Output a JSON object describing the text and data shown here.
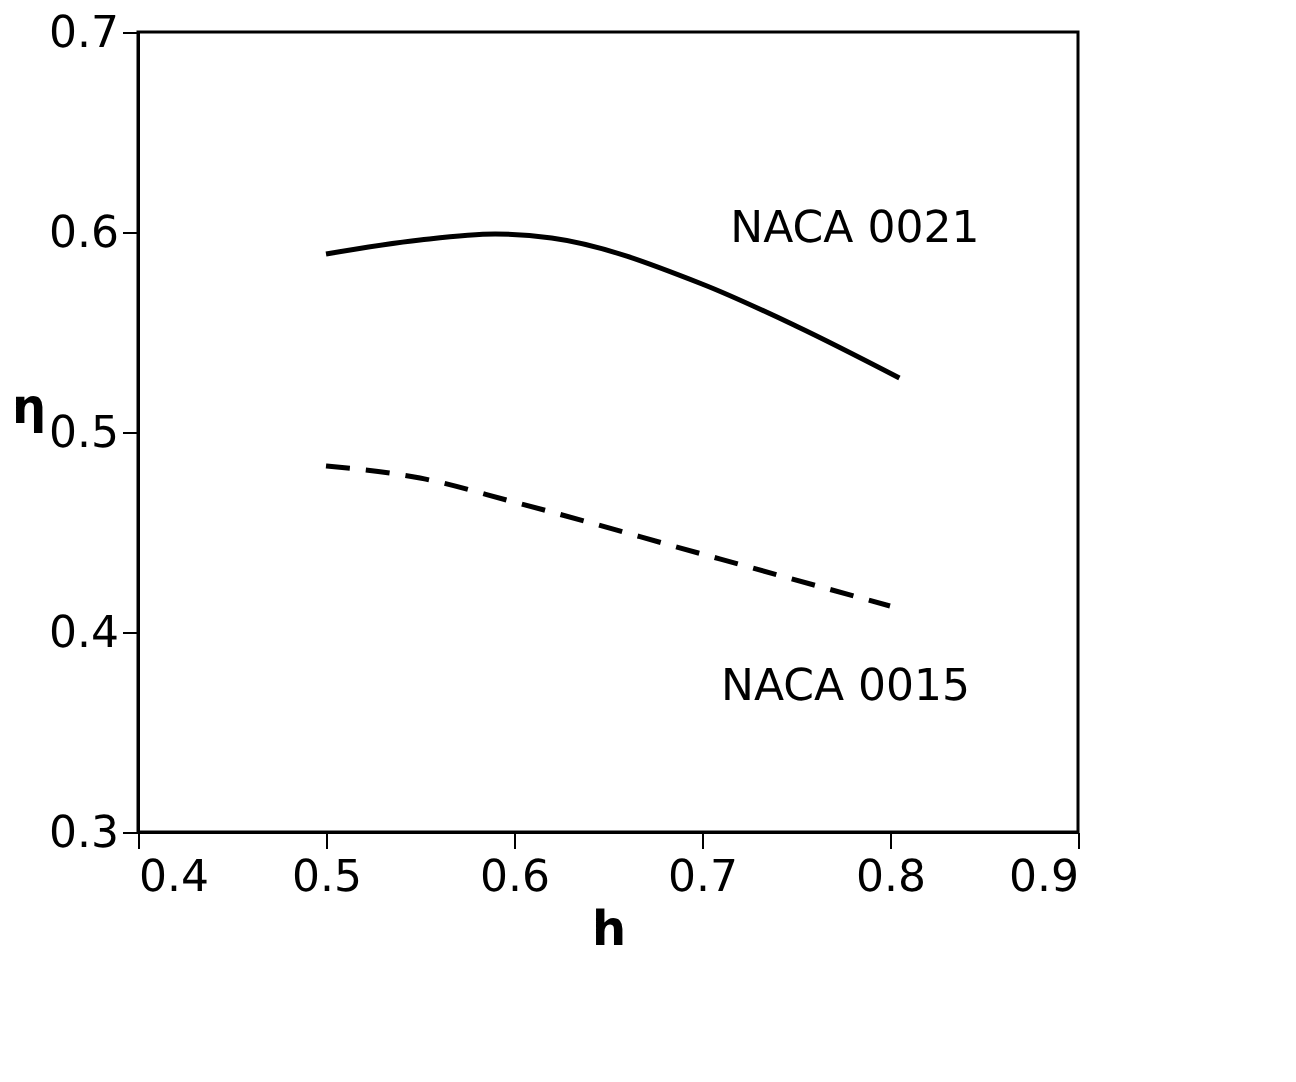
{
  "chart_data": {
    "type": "line",
    "xlabel": "h",
    "ylabel": "η",
    "xlim": [
      0.4,
      0.9
    ],
    "ylim": [
      0.3,
      0.7
    ],
    "xticks": [
      0.4,
      0.5,
      0.6,
      0.7,
      0.8,
      0.9
    ],
    "yticks": [
      0.3,
      0.4,
      0.5,
      0.6,
      0.7
    ],
    "grid": false,
    "marker": "none",
    "series": [
      {
        "name": "NACA 0021",
        "color": "#000000",
        "line_style": "solid",
        "x": [
          0.5,
          0.55,
          0.59,
          0.62,
          0.7,
          0.75,
          0.805
        ],
        "values": [
          0.589,
          0.596,
          0.599,
          0.597,
          0.574,
          0.553,
          0.527
        ]
      },
      {
        "name": "NACA 0015",
        "color": "#000000",
        "line_style": "dashed",
        "x": [
          0.5,
          0.55,
          0.6,
          0.7,
          0.8
        ],
        "values": [
          0.483,
          0.477,
          0.465,
          0.439,
          0.413
        ]
      }
    ]
  }
}
